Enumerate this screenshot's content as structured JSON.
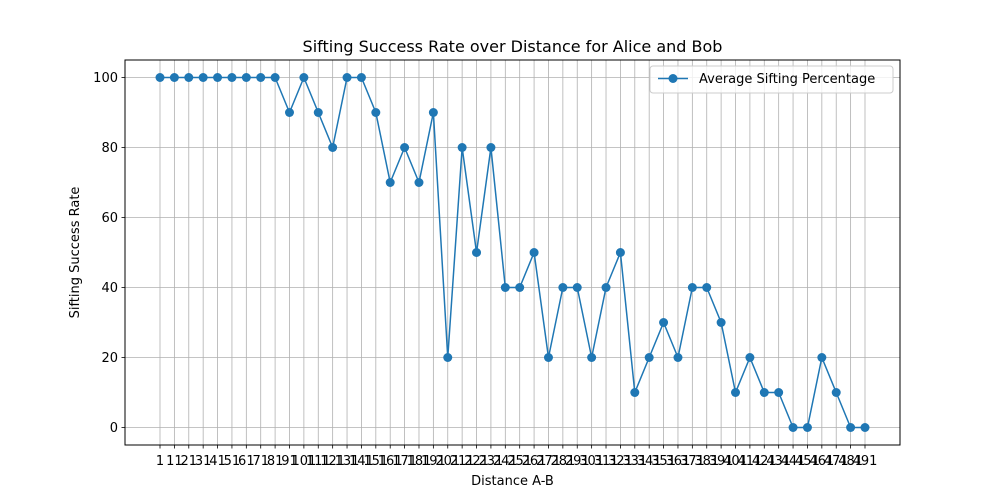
{
  "chart_data": {
    "type": "line",
    "title": "Sifting Success Rate over Distance for Alice and Bob",
    "xlabel": "Distance A-B",
    "ylabel": "Sifting Success Rate",
    "grid": true,
    "legend_position": "top-right",
    "ylim": [
      -5,
      105
    ],
    "y_ticks": [
      0,
      20,
      40,
      60,
      80,
      100
    ],
    "categories": [
      "1",
      "11",
      "21",
      "31",
      "41",
      "51",
      "61",
      "71",
      "81",
      "91",
      "101",
      "111",
      "121",
      "131",
      "141",
      "151",
      "161",
      "171",
      "181",
      "191",
      "201",
      "211",
      "221",
      "231",
      "241",
      "251",
      "261",
      "271",
      "281",
      "291",
      "301",
      "311",
      "321",
      "331",
      "341",
      "351",
      "361",
      "371",
      "381",
      "391",
      "401",
      "411",
      "421",
      "431",
      "441",
      "451",
      "461",
      "471",
      "481",
      "491"
    ],
    "series": [
      {
        "name": "Average Sifting Percentage",
        "color": "#1f77b4",
        "marker": "circle",
        "values": [
          100,
          100,
          100,
          100,
          100,
          100,
          100,
          100,
          100,
          90,
          100,
          90,
          80,
          100,
          100,
          90,
          70,
          80,
          70,
          90,
          20,
          80,
          50,
          80,
          40,
          40,
          50,
          20,
          40,
          40,
          20,
          40,
          50,
          10,
          20,
          30,
          20,
          40,
          40,
          30,
          10,
          20,
          10,
          10,
          0,
          0,
          20,
          10,
          0,
          0
        ]
      }
    ]
  }
}
